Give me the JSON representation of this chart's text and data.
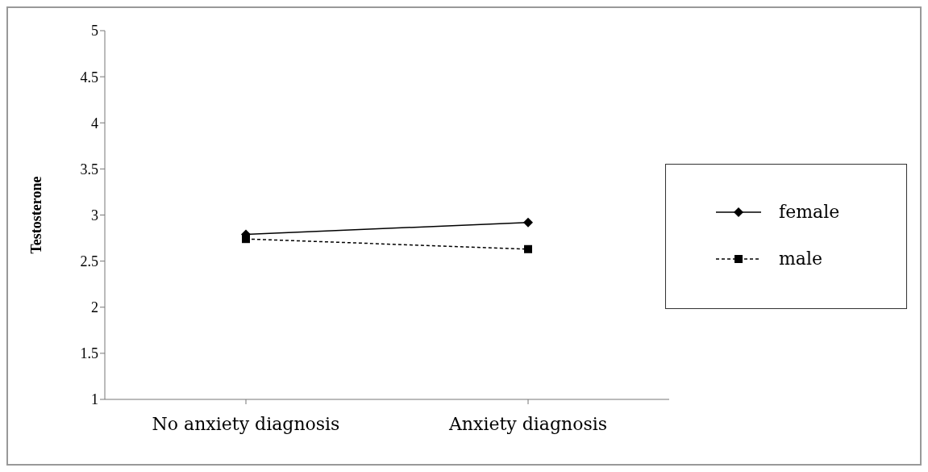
{
  "chart_data": {
    "type": "line",
    "ylabel": "Testosterone",
    "categories": [
      "No anxiety diagnosis",
      "Anxiety diagnosis"
    ],
    "series": [
      {
        "name": "female",
        "color": "#000000",
        "values": [
          2.79,
          2.92
        ],
        "marker": "diamond",
        "line_style": "solid"
      },
      {
        "name": "male",
        "color": "#000000",
        "values": [
          2.74,
          2.63
        ],
        "marker": "square",
        "line_style": "dashed"
      }
    ],
    "ylim": [
      1,
      5
    ],
    "yticks": [
      1,
      1.5,
      2,
      2.5,
      3,
      3.5,
      4,
      4.5,
      5
    ],
    "grid": false,
    "legend": "right"
  }
}
